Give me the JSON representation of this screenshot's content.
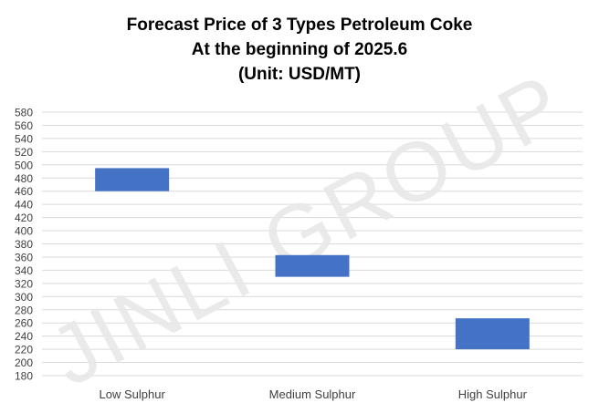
{
  "chart_data": {
    "type": "floating-bar",
    "title_lines": [
      "Forecast Price of 3 Types Petroleum Coke",
      "At the beginning of 2025.6",
      "(Unit: USD/MT)"
    ],
    "categories": [
      "Low Sulphur",
      "Medium Sulphur",
      "High Sulphur"
    ],
    "ranges": [
      {
        "low": 460,
        "high": 495
      },
      {
        "low": 330,
        "high": 363
      },
      {
        "low": 220,
        "high": 267
      }
    ],
    "ylim": [
      180,
      580
    ],
    "y_ticks": [
      180,
      200,
      220,
      240,
      260,
      280,
      300,
      320,
      340,
      360,
      380,
      400,
      420,
      440,
      460,
      480,
      500,
      520,
      540,
      560,
      580
    ],
    "grid": true,
    "legend": "none",
    "bar_color": "#4472C4",
    "grid_color": "#D9D9D9"
  },
  "watermark": {
    "text": "JINLI GROUP",
    "color": "#E8E8E8"
  }
}
